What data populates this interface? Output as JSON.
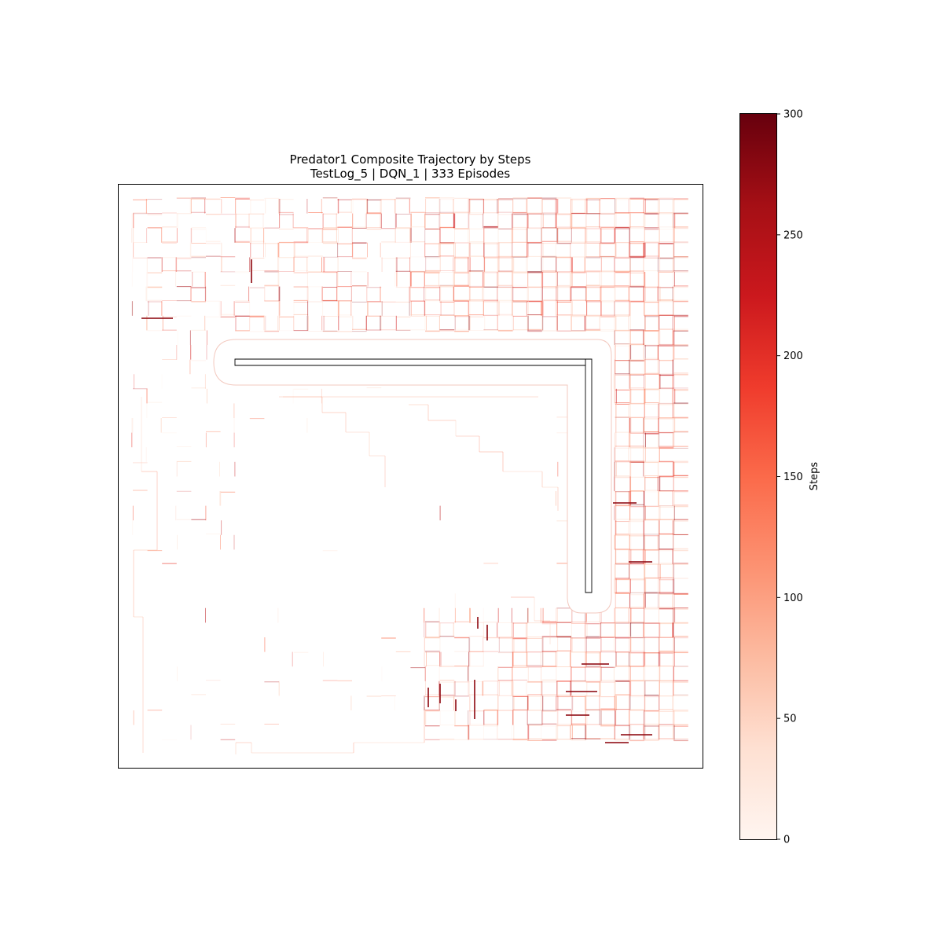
{
  "chart_data": {
    "type": "trajectory-heatmap",
    "title": "Predator1 Composite Trajectory by Steps",
    "subtitle": "TestLog_5 | DQN_1 | 333 Episodes",
    "colormap": "Reds",
    "colorbar": {
      "label": "Steps",
      "range": [
        0,
        300
      ],
      "ticks": [
        0,
        50,
        100,
        150,
        200,
        250,
        300
      ]
    },
    "episodes": 333,
    "obstacle": "L-shaped wall (horizontal arm along upper region, vertical arm down the right side)",
    "density": "trajectories concentrated in the top band, the right column and the bottom-right region; sparse on the left; empty in the lower-left interior",
    "grid": false,
    "axes_ticks": false,
    "colors": {
      "low": "#fff5f0",
      "mid": "#fb6a4a",
      "high": "#67000d"
    }
  }
}
